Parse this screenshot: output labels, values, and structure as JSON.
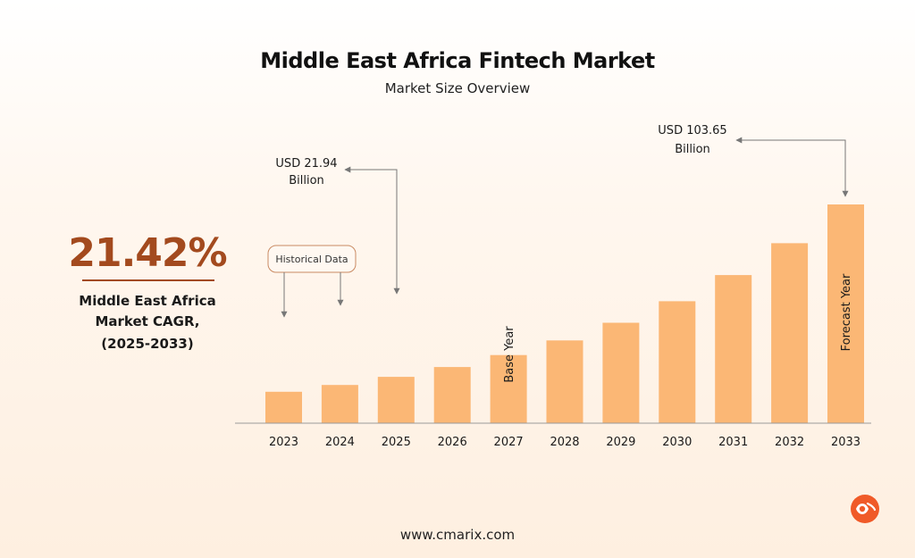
{
  "title": "Middle East Africa Fintech Market",
  "subtitle": "Market Size Overview",
  "cagr": {
    "value": "21.42%",
    "line1": "Middle East Africa",
    "line2": "Market CAGR,",
    "line3": "(2025-2033)"
  },
  "annotations": {
    "start_line1": "USD 21.94",
    "start_line2": "Billion",
    "end_line1": "USD 103.65",
    "end_line2": "Billion",
    "historical": "Historical Data",
    "base_year": "Base Year",
    "forecast_year": "Forecast Year"
  },
  "footer": {
    "url": "www.cmarix.com"
  },
  "colors": {
    "bar": "#fbb775",
    "accent": "#a34a1e",
    "axis": "#9a9a9a",
    "logo": "#f05a28"
  },
  "chart_data": {
    "type": "bar",
    "categories": [
      "2023",
      "2024",
      "2025",
      "2026",
      "2027",
      "2028",
      "2029",
      "2030",
      "2031",
      "2032",
      "2033"
    ],
    "values": [
      14.9,
      18.1,
      21.94,
      26.6,
      32.3,
      39.2,
      47.6,
      57.8,
      70.2,
      85.3,
      103.65
    ],
    "ylim": [
      0,
      110
    ],
    "grid": false,
    "legend": "none"
  }
}
